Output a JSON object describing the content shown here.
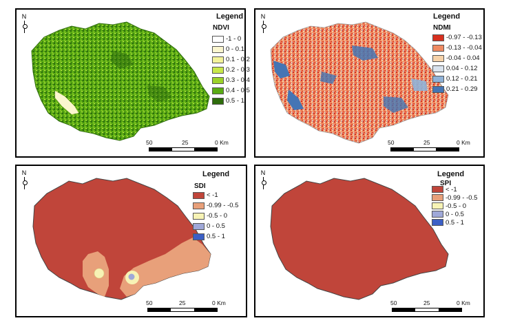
{
  "north_label": "N",
  "legend_title": "Legend",
  "scale_labels": [
    "50",
    "25",
    "0 Km"
  ],
  "panels": [
    {
      "variable": "NDVI",
      "classes": [
        {
          "label": "-1 - 0",
          "color": "#ffffff"
        },
        {
          "label": "0 - 0.1",
          "color": "#fbf6cf"
        },
        {
          "label": "0.1 - 0.2",
          "color": "#f3f39a"
        },
        {
          "label": "0.2 - 0.3",
          "color": "#c8e84a"
        },
        {
          "label": "0.3 - 0.4",
          "color": "#9cd22a"
        },
        {
          "label": "0.4 - 0.5",
          "color": "#5aab14"
        },
        {
          "label": "0.5 - 1",
          "color": "#2e6d0c"
        }
      ]
    },
    {
      "variable": "NDMI",
      "classes": [
        {
          "label": "-0.97 - -0.13",
          "color": "#d7301f"
        },
        {
          "label": "-0.13 - -0.04",
          "color": "#ef8a62"
        },
        {
          "label": "-0.04 - 0.04",
          "color": "#f6d2a9"
        },
        {
          "label": "0.04 - 0.12",
          "color": "#d9e3ee"
        },
        {
          "label": "0.12 - 0.21",
          "color": "#8fb2d8"
        },
        {
          "label": "0.21 - 0.29",
          "color": "#4575b4"
        }
      ]
    },
    {
      "variable": "SDI",
      "classes": [
        {
          "label": "< -1",
          "color": "#c0453a"
        },
        {
          "label": "-0.99 - -0.5",
          "color": "#e8a07a"
        },
        {
          "label": "-0.5 - 0",
          "color": "#f7f3b5"
        },
        {
          "label": "0 - 0.5",
          "color": "#9fa8d8"
        },
        {
          "label": "0.5 - 1",
          "color": "#3b5fc5"
        }
      ]
    },
    {
      "variable": "SPI",
      "classes": [
        {
          "label": "< -1",
          "color": "#c0453a"
        },
        {
          "label": "-0.99 - -0.5",
          "color": "#e8a07a"
        },
        {
          "label": "-0.5 - 0",
          "color": "#f7f3b5"
        },
        {
          "label": "0 - 0.5",
          "color": "#9fa8d8"
        },
        {
          "label": "0.5 - 1",
          "color": "#3b5fc5"
        }
      ]
    }
  ]
}
